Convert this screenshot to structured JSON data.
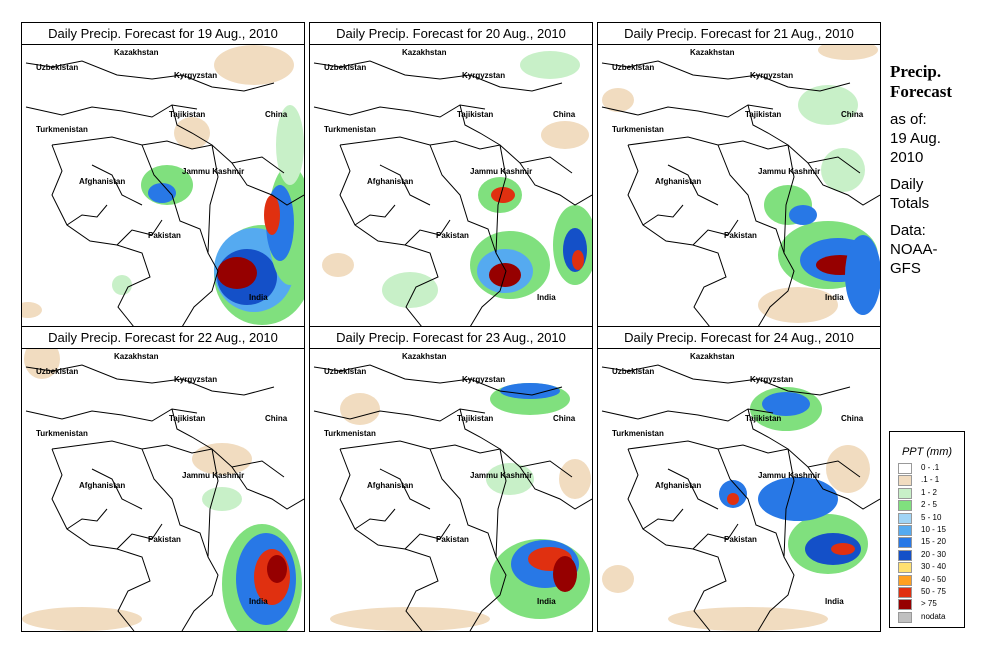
{
  "panels": [
    {
      "title": "Daily Precip. Forecast for  19 Aug., 2010"
    },
    {
      "title": "Daily Precip. Forecast for  20 Aug., 2010"
    },
    {
      "title": "Daily Precip. Forecast for  21 Aug., 2010"
    },
    {
      "title": "Daily Precip. Forecast for  22 Aug., 2010"
    },
    {
      "title": "Daily Precip. Forecast for  23 Aug., 2010"
    },
    {
      "title": "Daily Precip. Forecast for  24 Aug., 2010"
    }
  ],
  "map_labels": [
    "Kazakhstan",
    "Uzbekistan",
    "Kyrgyzstan",
    "Tajikistan",
    "China",
    "Turkmenistan",
    "Afghanistan",
    "Jammu Kashmir",
    "Pakistan",
    "India"
  ],
  "side": {
    "heading_line1": "Precip.",
    "heading_line2": "Forecast",
    "asof_line1": "as of:",
    "asof_line2": "19 Aug.",
    "asof_line3": "2010",
    "totals_line1": "Daily",
    "totals_line2": "Totals",
    "data_line1": "Data:",
    "data_line2": "NOAA-",
    "data_line3": "GFS"
  },
  "legend": {
    "title": "PPT (mm)",
    "items": [
      {
        "label": "0 - .1",
        "color": "#ffffff"
      },
      {
        "label": ".1 - 1",
        "color": "#f1dcc0"
      },
      {
        "label": "1 - 2",
        "color": "#c8f0c8"
      },
      {
        "label": "2 - 5",
        "color": "#80e07e"
      },
      {
        "label": "5 - 10",
        "color": "#a0d4f5"
      },
      {
        "label": "10 - 15",
        "color": "#55aaf0"
      },
      {
        "label": "15 - 20",
        "color": "#2878e6"
      },
      {
        "label": "20 - 30",
        "color": "#1450c8"
      },
      {
        "label": "30 - 40",
        "color": "#ffe070"
      },
      {
        "label": "40 - 50",
        "color": "#ffa020"
      },
      {
        "label": "50 - 75",
        "color": "#e03010"
      },
      {
        "label": "> 75",
        "color": "#960000"
      },
      {
        "label": "nodata",
        "color": "#c0c0c0"
      }
    ]
  }
}
